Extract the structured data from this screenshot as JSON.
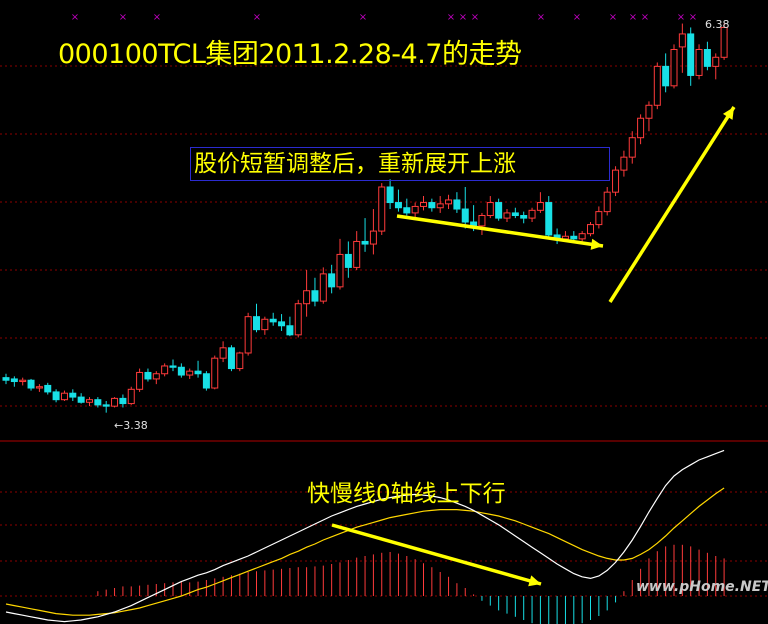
{
  "title": "000100TCL集团2011.2.28-4.7的走势",
  "annotation": "股价短暂调整后，重新展开上涨",
  "macd_annotation": "快慢线0轴线上下行",
  "watermark": "www.pHome.NET",
  "price_labels": {
    "high": "6.38",
    "low": "←3.38"
  },
  "colors": {
    "up": "#ff3b3b",
    "down": "#18e0e6",
    "dif": "#ffffff",
    "dea": "#ffd700",
    "arrow": "#ffff00",
    "grid": "#8b0000",
    "marker": "#c000c0"
  },
  "chart_data": [
    {
      "type": "candlestick",
      "title": "000100TCL集团2011.2.28-4.7的走势",
      "ylim": [
        3.2,
        6.5
      ],
      "grid": "dashed horizontal",
      "extremes": {
        "high": 6.38,
        "low": 3.38
      },
      "candles": [
        {
          "o": 3.65,
          "h": 3.68,
          "l": 3.6,
          "c": 3.63
        },
        {
          "o": 3.64,
          "h": 3.66,
          "l": 3.58,
          "c": 3.62
        },
        {
          "o": 3.62,
          "h": 3.65,
          "l": 3.59,
          "c": 3.63
        },
        {
          "o": 3.63,
          "h": 3.64,
          "l": 3.55,
          "c": 3.57
        },
        {
          "o": 3.57,
          "h": 3.6,
          "l": 3.54,
          "c": 3.58
        },
        {
          "o": 3.59,
          "h": 3.61,
          "l": 3.52,
          "c": 3.54
        },
        {
          "o": 3.54,
          "h": 3.56,
          "l": 3.46,
          "c": 3.48
        },
        {
          "o": 3.48,
          "h": 3.55,
          "l": 3.47,
          "c": 3.53
        },
        {
          "o": 3.53,
          "h": 3.56,
          "l": 3.47,
          "c": 3.5
        },
        {
          "o": 3.5,
          "h": 3.53,
          "l": 3.45,
          "c": 3.46
        },
        {
          "o": 3.46,
          "h": 3.5,
          "l": 3.43,
          "c": 3.48
        },
        {
          "o": 3.48,
          "h": 3.5,
          "l": 3.42,
          "c": 3.44
        },
        {
          "o": 3.44,
          "h": 3.47,
          "l": 3.38,
          "c": 3.43
        },
        {
          "o": 3.43,
          "h": 3.5,
          "l": 3.42,
          "c": 3.49
        },
        {
          "o": 3.49,
          "h": 3.52,
          "l": 3.42,
          "c": 3.45
        },
        {
          "o": 3.45,
          "h": 3.58,
          "l": 3.44,
          "c": 3.56
        },
        {
          "o": 3.56,
          "h": 3.72,
          "l": 3.54,
          "c": 3.69
        },
        {
          "o": 3.69,
          "h": 3.72,
          "l": 3.62,
          "c": 3.64
        },
        {
          "o": 3.64,
          "h": 3.7,
          "l": 3.6,
          "c": 3.68
        },
        {
          "o": 3.68,
          "h": 3.76,
          "l": 3.66,
          "c": 3.74
        },
        {
          "o": 3.74,
          "h": 3.79,
          "l": 3.7,
          "c": 3.73
        },
        {
          "o": 3.73,
          "h": 3.76,
          "l": 3.65,
          "c": 3.67
        },
        {
          "o": 3.67,
          "h": 3.72,
          "l": 3.64,
          "c": 3.7
        },
        {
          "o": 3.7,
          "h": 3.78,
          "l": 3.65,
          "c": 3.68
        },
        {
          "o": 3.68,
          "h": 3.7,
          "l": 3.55,
          "c": 3.57
        },
        {
          "o": 3.57,
          "h": 3.82,
          "l": 3.56,
          "c": 3.8
        },
        {
          "o": 3.8,
          "h": 3.93,
          "l": 3.77,
          "c": 3.88
        },
        {
          "o": 3.88,
          "h": 3.9,
          "l": 3.7,
          "c": 3.72
        },
        {
          "o": 3.72,
          "h": 3.85,
          "l": 3.7,
          "c": 3.84
        },
        {
          "o": 3.84,
          "h": 4.15,
          "l": 3.82,
          "c": 4.12
        },
        {
          "o": 4.12,
          "h": 4.22,
          "l": 4.0,
          "c": 4.02
        },
        {
          "o": 4.02,
          "h": 4.12,
          "l": 3.98,
          "c": 4.1
        },
        {
          "o": 4.1,
          "h": 4.15,
          "l": 4.05,
          "c": 4.08
        },
        {
          "o": 4.08,
          "h": 4.14,
          "l": 4.01,
          "c": 4.05
        },
        {
          "o": 4.05,
          "h": 4.12,
          "l": 3.97,
          "c": 3.98
        },
        {
          "o": 3.98,
          "h": 4.25,
          "l": 3.96,
          "c": 4.22
        },
        {
          "o": 4.22,
          "h": 4.48,
          "l": 4.12,
          "c": 4.32
        },
        {
          "o": 4.32,
          "h": 4.42,
          "l": 4.2,
          "c": 4.24
        },
        {
          "o": 4.24,
          "h": 4.5,
          "l": 4.22,
          "c": 4.45
        },
        {
          "o": 4.45,
          "h": 4.52,
          "l": 4.3,
          "c": 4.35
        },
        {
          "o": 4.35,
          "h": 4.72,
          "l": 4.33,
          "c": 4.6
        },
        {
          "o": 4.6,
          "h": 4.7,
          "l": 4.42,
          "c": 4.5
        },
        {
          "o": 4.5,
          "h": 4.78,
          "l": 4.48,
          "c": 4.7
        },
        {
          "o": 4.7,
          "h": 4.88,
          "l": 4.62,
          "c": 4.68
        },
        {
          "o": 4.68,
          "h": 4.95,
          "l": 4.6,
          "c": 4.78
        },
        {
          "o": 4.78,
          "h": 5.15,
          "l": 4.75,
          "c": 5.12
        },
        {
          "o": 5.12,
          "h": 5.18,
          "l": 4.95,
          "c": 5.0
        },
        {
          "o": 5.0,
          "h": 5.1,
          "l": 4.93,
          "c": 4.96
        },
        {
          "o": 4.96,
          "h": 5.03,
          "l": 4.9,
          "c": 4.92
        },
        {
          "o": 4.92,
          "h": 5.0,
          "l": 4.88,
          "c": 4.97
        },
        {
          "o": 4.97,
          "h": 5.05,
          "l": 4.94,
          "c": 5.0
        },
        {
          "o": 5.0,
          "h": 5.03,
          "l": 4.93,
          "c": 4.96
        },
        {
          "o": 4.96,
          "h": 5.05,
          "l": 4.92,
          "c": 4.99
        },
        {
          "o": 4.99,
          "h": 5.06,
          "l": 4.95,
          "c": 5.02
        },
        {
          "o": 5.02,
          "h": 5.08,
          "l": 4.92,
          "c": 4.95
        },
        {
          "o": 4.95,
          "h": 5.12,
          "l": 4.8,
          "c": 4.85
        },
        {
          "o": 4.85,
          "h": 4.98,
          "l": 4.78,
          "c": 4.82
        },
        {
          "o": 4.82,
          "h": 4.92,
          "l": 4.75,
          "c": 4.9
        },
        {
          "o": 4.9,
          "h": 5.05,
          "l": 4.88,
          "c": 5.0
        },
        {
          "o": 5.0,
          "h": 5.03,
          "l": 4.86,
          "c": 4.88
        },
        {
          "o": 4.88,
          "h": 4.95,
          "l": 4.85,
          "c": 4.92
        },
        {
          "o": 4.92,
          "h": 4.96,
          "l": 4.88,
          "c": 4.9
        },
        {
          "o": 4.9,
          "h": 4.93,
          "l": 4.84,
          "c": 4.88
        },
        {
          "o": 4.88,
          "h": 4.96,
          "l": 4.85,
          "c": 4.94
        },
        {
          "o": 4.94,
          "h": 5.08,
          "l": 4.92,
          "c": 5.0
        },
        {
          "o": 5.0,
          "h": 5.05,
          "l": 4.72,
          "c": 4.75
        },
        {
          "o": 4.75,
          "h": 4.8,
          "l": 4.68,
          "c": 4.72
        },
        {
          "o": 4.72,
          "h": 4.78,
          "l": 4.7,
          "c": 4.74
        },
        {
          "o": 4.74,
          "h": 4.78,
          "l": 4.7,
          "c": 4.72
        },
        {
          "o": 4.72,
          "h": 4.78,
          "l": 4.7,
          "c": 4.76
        },
        {
          "o": 4.76,
          "h": 4.85,
          "l": 4.74,
          "c": 4.83
        },
        {
          "o": 4.83,
          "h": 4.97,
          "l": 4.8,
          "c": 4.93
        },
        {
          "o": 4.93,
          "h": 5.12,
          "l": 4.9,
          "c": 5.08
        },
        {
          "o": 5.08,
          "h": 5.28,
          "l": 5.05,
          "c": 5.25
        },
        {
          "o": 5.25,
          "h": 5.4,
          "l": 5.2,
          "c": 5.35
        },
        {
          "o": 5.35,
          "h": 5.55,
          "l": 5.3,
          "c": 5.5
        },
        {
          "o": 5.5,
          "h": 5.68,
          "l": 5.45,
          "c": 5.65
        },
        {
          "o": 5.65,
          "h": 5.78,
          "l": 5.55,
          "c": 5.75
        },
        {
          "o": 5.75,
          "h": 6.08,
          "l": 5.72,
          "c": 6.05
        },
        {
          "o": 6.05,
          "h": 6.15,
          "l": 5.85,
          "c": 5.9
        },
        {
          "o": 5.9,
          "h": 6.22,
          "l": 5.88,
          "c": 6.18
        },
        {
          "o": 6.2,
          "h": 6.38,
          "l": 6.0,
          "c": 6.3
        },
        {
          "o": 6.3,
          "h": 6.35,
          "l": 5.9,
          "c": 5.98
        },
        {
          "o": 5.98,
          "h": 6.22,
          "l": 5.95,
          "c": 6.18
        },
        {
          "o": 6.18,
          "h": 6.24,
          "l": 6.02,
          "c": 6.05
        },
        {
          "o": 6.05,
          "h": 6.15,
          "l": 5.95,
          "c": 6.12
        },
        {
          "o": 6.12,
          "h": 6.38,
          "l": 6.1,
          "c": 6.35
        }
      ]
    },
    {
      "type": "histogram+line",
      "series": [
        {
          "values": [
            -0.02,
            -0.022,
            -0.024,
            -0.026,
            -0.028,
            -0.03,
            -0.031,
            -0.032,
            -0.031,
            -0.03,
            -0.028,
            -0.026,
            -0.023,
            -0.02,
            -0.016,
            -0.012,
            -0.007,
            -0.002,
            0.003,
            0.008,
            0.013,
            0.018,
            0.022,
            0.026,
            0.029,
            0.033,
            0.038,
            0.042,
            0.046,
            0.05,
            0.055,
            0.06,
            0.065,
            0.07,
            0.075,
            0.08,
            0.085,
            0.09,
            0.095,
            0.1,
            0.104,
            0.108,
            0.112,
            0.115,
            0.118,
            0.121,
            0.123,
            0.125,
            0.126,
            0.127,
            0.126,
            0.125,
            0.123,
            0.12,
            0.116,
            0.112,
            0.107,
            0.101,
            0.095,
            0.089,
            0.082,
            0.075,
            0.068,
            0.061,
            0.054,
            0.047,
            0.04,
            0.034,
            0.028,
            0.024,
            0.022,
            0.025,
            0.032,
            0.042,
            0.055,
            0.07,
            0.087,
            0.105,
            0.122,
            0.138,
            0.15,
            0.158,
            0.164,
            0.17,
            0.174,
            0.178,
            0.182
          ]
        },
        {
          "values": [
            -0.01,
            -0.012,
            -0.014,
            -0.016,
            -0.018,
            -0.02,
            -0.022,
            -0.023,
            -0.024,
            -0.024,
            -0.024,
            -0.023,
            -0.022,
            -0.021,
            -0.019,
            -0.017,
            -0.015,
            -0.012,
            -0.009,
            -0.006,
            -0.003,
            0.0,
            0.004,
            0.008,
            0.011,
            0.015,
            0.019,
            0.023,
            0.027,
            0.031,
            0.035,
            0.039,
            0.043,
            0.047,
            0.052,
            0.056,
            0.061,
            0.065,
            0.07,
            0.074,
            0.078,
            0.082,
            0.086,
            0.089,
            0.092,
            0.095,
            0.098,
            0.1,
            0.102,
            0.104,
            0.106,
            0.107,
            0.108,
            0.108,
            0.108,
            0.107,
            0.106,
            0.104,
            0.102,
            0.1,
            0.097,
            0.094,
            0.09,
            0.086,
            0.082,
            0.078,
            0.073,
            0.068,
            0.063,
            0.058,
            0.054,
            0.05,
            0.047,
            0.045,
            0.045,
            0.047,
            0.052,
            0.058,
            0.066,
            0.075,
            0.085,
            0.094,
            0.103,
            0.112,
            0.12,
            0.128,
            0.135
          ]
        },
        {
          "values": [
            0,
            0,
            0,
            0,
            0,
            0,
            0,
            0,
            0,
            0,
            0,
            0.006,
            0.008,
            0.01,
            0.012,
            0.012,
            0.013,
            0.014,
            0.015,
            0.016,
            0.017,
            0.018,
            0.017,
            0.018,
            0.02,
            0.022,
            0.024,
            0.026,
            0.028,
            0.03,
            0.031,
            0.032,
            0.033,
            0.034,
            0.035,
            0.036,
            0.036,
            0.037,
            0.038,
            0.04,
            0.042,
            0.045,
            0.048,
            0.05,
            0.052,
            0.054,
            0.055,
            0.053,
            0.05,
            0.046,
            0.041,
            0.036,
            0.03,
            0.024,
            0.016,
            0.01,
            0.002,
            -0.006,
            -0.012,
            -0.018,
            -0.022,
            -0.026,
            -0.03,
            -0.034,
            -0.037,
            -0.039,
            -0.04,
            -0.04,
            -0.038,
            -0.034,
            -0.03,
            -0.025,
            -0.018,
            -0.008,
            0.006,
            0.02,
            0.034,
            0.047,
            0.056,
            0.062,
            0.064,
            0.064,
            0.062,
            0.058,
            0.054,
            0.05,
            0.047
          ]
        }
      ]
    }
  ]
}
